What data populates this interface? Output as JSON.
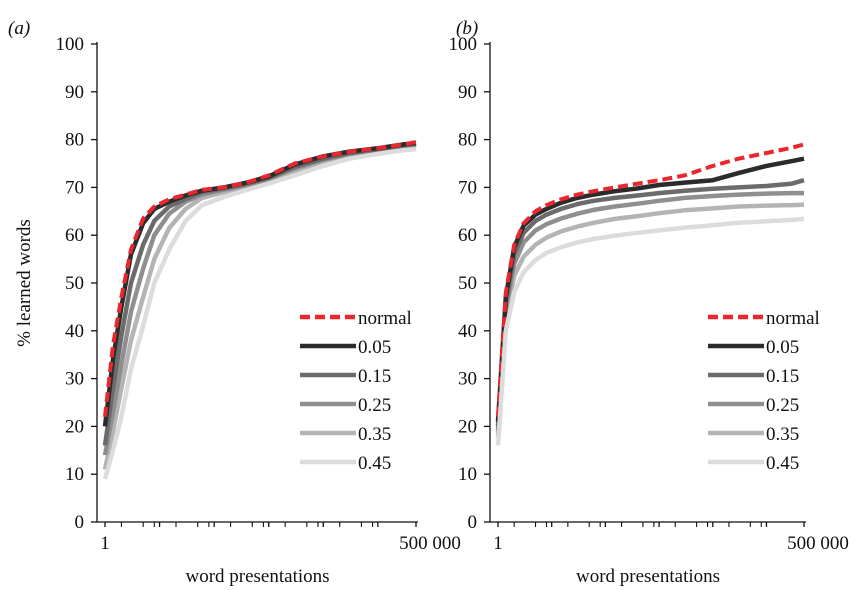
{
  "chart_data": [
    {
      "type": "line",
      "panel_label": "(a)",
      "xlabel": "word presentations",
      "ylabel": "% learned words",
      "x_scale": "log",
      "xlim": [
        1,
        500000
      ],
      "x_tick_labels": [
        "1",
        "500 000"
      ],
      "ylim": [
        0,
        100
      ],
      "y_ticks": [
        0,
        10,
        20,
        30,
        40,
        50,
        60,
        70,
        80,
        90,
        100
      ],
      "grid": false,
      "legend_position": "lower-right",
      "x": [
        1,
        1.4,
        2,
        3,
        5,
        8,
        15,
        30,
        60,
        150,
        400,
        1000,
        3000,
        10000,
        30000,
        100000,
        300000,
        500000
      ],
      "series": [
        {
          "name": "normal",
          "color": "#e8282e",
          "dash": true,
          "values": [
            22,
            37,
            47,
            57,
            63.5,
            66,
            67.5,
            68.5,
            69.5,
            70,
            71,
            72.5,
            75,
            76.5,
            77.5,
            78.2,
            79,
            79.5
          ]
        },
        {
          "name": "0.05",
          "color": "#2b2b2b",
          "dash": false,
          "values": [
            20,
            34,
            45,
            56,
            62.5,
            65.5,
            67,
            68.3,
            69.3,
            70,
            71,
            72.3,
            74.8,
            76.5,
            77.5,
            78.2,
            79,
            79.3
          ]
        },
        {
          "name": "0.15",
          "color": "#6b6b6b",
          "dash": false,
          "values": [
            16,
            28,
            39,
            50,
            58,
            63,
            66,
            67.6,
            69,
            69.8,
            70.8,
            72,
            74.3,
            76,
            77.2,
            78,
            78.8,
            79.2
          ]
        },
        {
          "name": "0.25",
          "color": "#8f8f8f",
          "dash": false,
          "values": [
            14,
            23,
            33,
            44,
            53,
            60,
            64.5,
            67,
            68.5,
            69.5,
            70.5,
            71.8,
            74,
            75.8,
            77,
            77.8,
            78.6,
            78.8
          ]
        },
        {
          "name": "0.35",
          "color": "#b4b4b4",
          "dash": false,
          "values": [
            11,
            19,
            28,
            38,
            47,
            55,
            61.5,
            65.5,
            67.8,
            69,
            70.2,
            71.5,
            73.5,
            75.3,
            76.7,
            77.5,
            78.2,
            78.5
          ]
        },
        {
          "name": "0.45",
          "color": "#dcdcdc",
          "dash": false,
          "values": [
            9,
            15,
            22,
            32,
            41,
            50,
            57,
            63,
            66.3,
            68,
            69.5,
            70.8,
            72.5,
            74.5,
            76,
            77,
            77.8,
            78
          ]
        }
      ]
    },
    {
      "type": "line",
      "panel_label": "(b)",
      "xlabel": "word presentations",
      "ylabel": "",
      "x_scale": "log",
      "xlim": [
        1,
        500000
      ],
      "x_tick_labels": [
        "1",
        "500 000"
      ],
      "ylim": [
        0,
        100
      ],
      "y_ticks": [
        0,
        10,
        20,
        30,
        40,
        50,
        60,
        70,
        80,
        90,
        100
      ],
      "grid": false,
      "legend_position": "lower-right",
      "x": [
        1,
        1.4,
        2,
        3,
        5,
        8,
        15,
        30,
        60,
        150,
        400,
        1000,
        3000,
        10000,
        30000,
        100000,
        300000,
        500000
      ],
      "series": [
        {
          "name": "normal",
          "color": "#e8282e",
          "dash": true,
          "values": [
            22,
            48,
            58,
            62.5,
            65,
            66.3,
            67.5,
            68.5,
            69.2,
            70,
            70.8,
            71.5,
            72.5,
            74.5,
            76,
            77.2,
            78.3,
            79
          ]
        },
        {
          "name": "0.05",
          "color": "#2b2b2b",
          "dash": false,
          "values": [
            21,
            47,
            57.5,
            62,
            64.3,
            65.5,
            66.8,
            67.8,
            68.5,
            69.2,
            69.8,
            70.5,
            71,
            71.5,
            73,
            74.5,
            75.5,
            76
          ]
        },
        {
          "name": "0.15",
          "color": "#6b6b6b",
          "dash": false,
          "values": [
            20,
            46,
            56,
            60.5,
            63,
            64.3,
            65.5,
            66.5,
            67.2,
            67.8,
            68.3,
            68.8,
            69.3,
            69.7,
            70,
            70.3,
            70.8,
            71.5
          ]
        },
        {
          "name": "0.25",
          "color": "#8f8f8f",
          "dash": false,
          "values": [
            19,
            44.5,
            54,
            58.5,
            61,
            62.3,
            63.5,
            64.5,
            65.3,
            66,
            66.6,
            67.2,
            67.8,
            68.2,
            68.5,
            68.7,
            68.8,
            68.8
          ]
        },
        {
          "name": "0.35",
          "color": "#b4b4b4",
          "dash": false,
          "values": [
            18,
            42.5,
            51.5,
            55.5,
            58,
            59.5,
            60.8,
            61.8,
            62.6,
            63.4,
            64,
            64.6,
            65.2,
            65.6,
            66,
            66.2,
            66.3,
            66.4
          ]
        },
        {
          "name": "0.45",
          "color": "#dcdcdc",
          "dash": false,
          "values": [
            16,
            40,
            48,
            52.3,
            54.8,
            56.3,
            57.5,
            58.5,
            59.2,
            59.9,
            60.5,
            61,
            61.6,
            62.1,
            62.6,
            62.9,
            63.2,
            63.4
          ]
        }
      ]
    }
  ]
}
